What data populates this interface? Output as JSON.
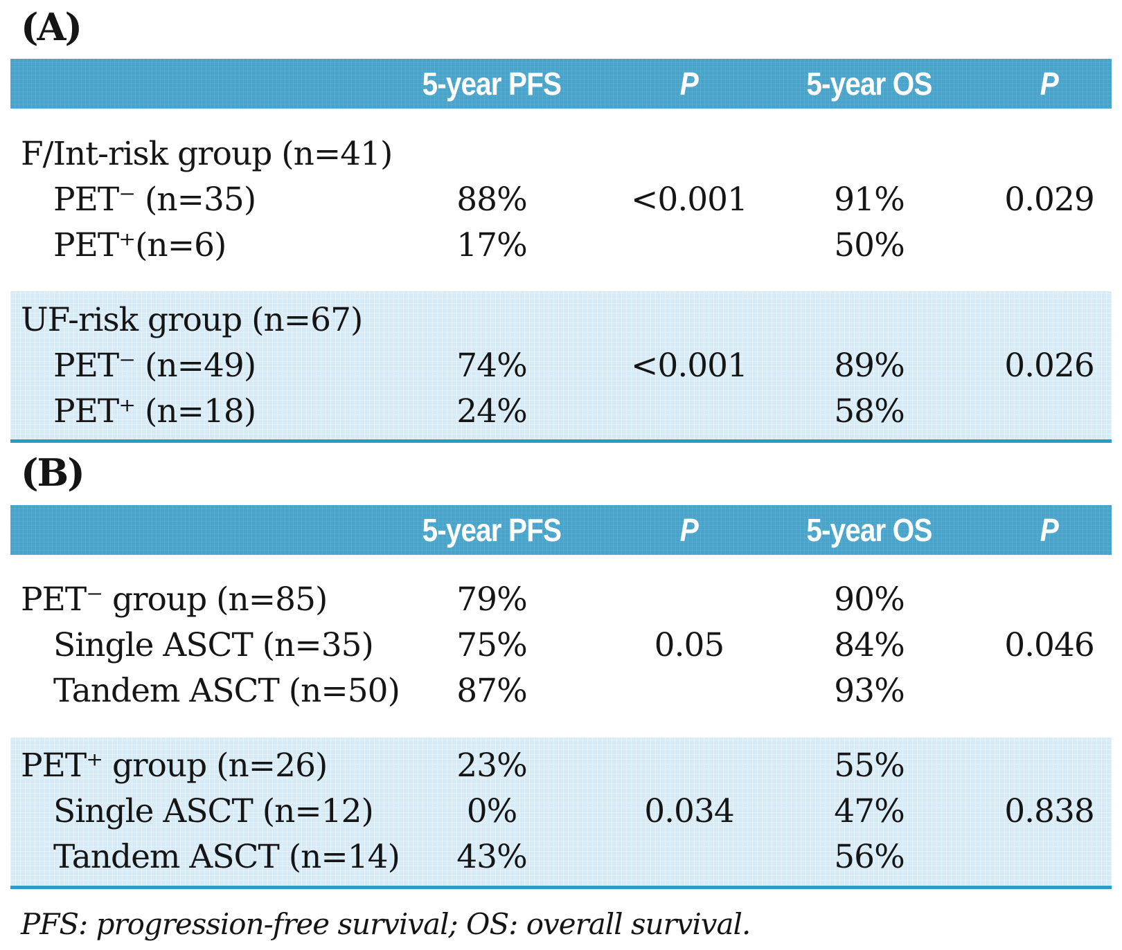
{
  "footnote": "PFS: progression-free survival; OS: overall survival.",
  "colors": {
    "header_bg": "#4AA4C9",
    "band_bg": "#D7EBF6",
    "bottom_rule": "#2B9CC6",
    "header_text": "#FFFFFF",
    "body_text": "#151515"
  },
  "tables": [
    {
      "panel_label": "(A)",
      "columns": [
        "",
        "5-year PFS",
        "P",
        "5-year OS",
        "P"
      ],
      "sections": [
        {
          "shaded": false,
          "rows": [
            {
              "label": "F/Int-risk group (n=41)",
              "indent": false,
              "values": [
                "",
                "",
                "",
                ""
              ]
            },
            {
              "label": "PET⁻ (n=35)",
              "indent": true,
              "values": [
                "88%",
                "<0.001",
                "91%",
                "0.029"
              ]
            },
            {
              "label": "PET⁺(n=6)",
              "indent": true,
              "values": [
                "17%",
                "",
                "50%",
                ""
              ]
            }
          ]
        },
        {
          "shaded": true,
          "rows": [
            {
              "label": "UF-risk group (n=67)",
              "indent": false,
              "values": [
                "",
                "",
                "",
                ""
              ]
            },
            {
              "label": "PET⁻ (n=49)",
              "indent": true,
              "values": [
                "74%",
                "<0.001",
                "89%",
                "0.026"
              ]
            },
            {
              "label": "PET⁺ (n=18)",
              "indent": true,
              "values": [
                "24%",
                "",
                "58%",
                ""
              ]
            }
          ]
        }
      ]
    },
    {
      "panel_label": "(B)",
      "columns": [
        "",
        "5-year PFS",
        "P",
        "5-year OS",
        "P"
      ],
      "sections": [
        {
          "shaded": false,
          "rows": [
            {
              "label": "PET⁻ group (n=85)",
              "indent": false,
              "values": [
                "79%",
                "",
                "90%",
                ""
              ]
            },
            {
              "label": "Single ASCT (n=35)",
              "indent": true,
              "values": [
                "75%",
                "0.05",
                "84%",
                "0.046"
              ]
            },
            {
              "label": "Tandem ASCT (n=50)",
              "indent": true,
              "values": [
                "87%",
                "",
                "93%",
                ""
              ]
            }
          ]
        },
        {
          "shaded": true,
          "rows": [
            {
              "label": "PET⁺ group (n=26)",
              "indent": false,
              "values": [
                "23%",
                "",
                "55%",
                ""
              ]
            },
            {
              "label": "Single ASCT (n=12)",
              "indent": true,
              "values": [
                "0%",
                "0.034",
                "47%",
                "0.838"
              ]
            },
            {
              "label": "Tandem ASCT (n=14)",
              "indent": true,
              "values": [
                "43%",
                "",
                "56%",
                ""
              ]
            }
          ]
        }
      ]
    }
  ]
}
